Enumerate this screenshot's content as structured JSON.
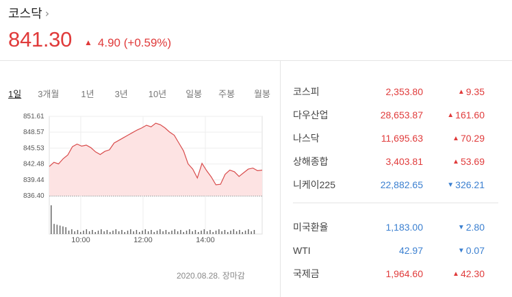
{
  "header": {
    "index_name": "코스닥",
    "price": "841.30",
    "change": "4.90",
    "change_pct": "(+0.59%)"
  },
  "tabs": [
    "1일",
    "3개월",
    "1년",
    "3년",
    "10년",
    "일봉",
    "주봉",
    "월봉"
  ],
  "chart_data": {
    "type": "area",
    "y_ticks": [
      "851.61",
      "848.57",
      "845.53",
      "842.48",
      "839.44",
      "836.40"
    ],
    "x_ticks": [
      "10:00",
      "12:00",
      "14:00"
    ],
    "baseline": 836.4,
    "ylim": [
      836.4,
      851.61
    ],
    "points": [
      842.0,
      842.8,
      842.5,
      843.5,
      844.2,
      845.8,
      846.3,
      845.9,
      846.1,
      845.6,
      844.8,
      844.3,
      844.9,
      845.2,
      846.5,
      847.0,
      847.5,
      848.0,
      848.5,
      849.0,
      849.4,
      849.9,
      849.6,
      850.3,
      850.0,
      849.4,
      848.6,
      848.0,
      846.5,
      845.0,
      842.5,
      841.5,
      839.8,
      842.6,
      841.2,
      840.0,
      838.5,
      838.6,
      840.5,
      841.3,
      841.0,
      840.1,
      840.8,
      841.5,
      841.7,
      841.2,
      841.3
    ]
  },
  "footer": {
    "date": "2020.08.28. 장마감"
  },
  "markets": [
    {
      "name": "코스피",
      "value": "2,353.80",
      "change": "9.35",
      "dir": "up"
    },
    {
      "name": "다우산업",
      "value": "28,653.87",
      "change": "161.60",
      "dir": "up"
    },
    {
      "name": "나스닥",
      "value": "11,695.63",
      "change": "70.29",
      "dir": "up"
    },
    {
      "name": "상해종합",
      "value": "3,403.81",
      "change": "53.69",
      "dir": "up"
    },
    {
      "name": "니케이225",
      "value": "22,882.65",
      "change": "326.21",
      "dir": "down"
    }
  ],
  "fx": [
    {
      "name": "미국환율",
      "value": "1,183.00",
      "change": "2.80",
      "dir": "down"
    },
    {
      "name": "WTI",
      "value": "42.97",
      "change": "0.07",
      "dir": "down"
    },
    {
      "name": "국제금",
      "value": "1,964.60",
      "change": "42.30",
      "dir": "up"
    }
  ],
  "colors": {
    "up": "#e03a3a",
    "down": "#3a7fd0",
    "area_fill": "#fde3e3",
    "line": "#d84a4a"
  },
  "icons": {
    "up_arrow": "▲",
    "down_arrow": "▼",
    "chevron": "›"
  }
}
